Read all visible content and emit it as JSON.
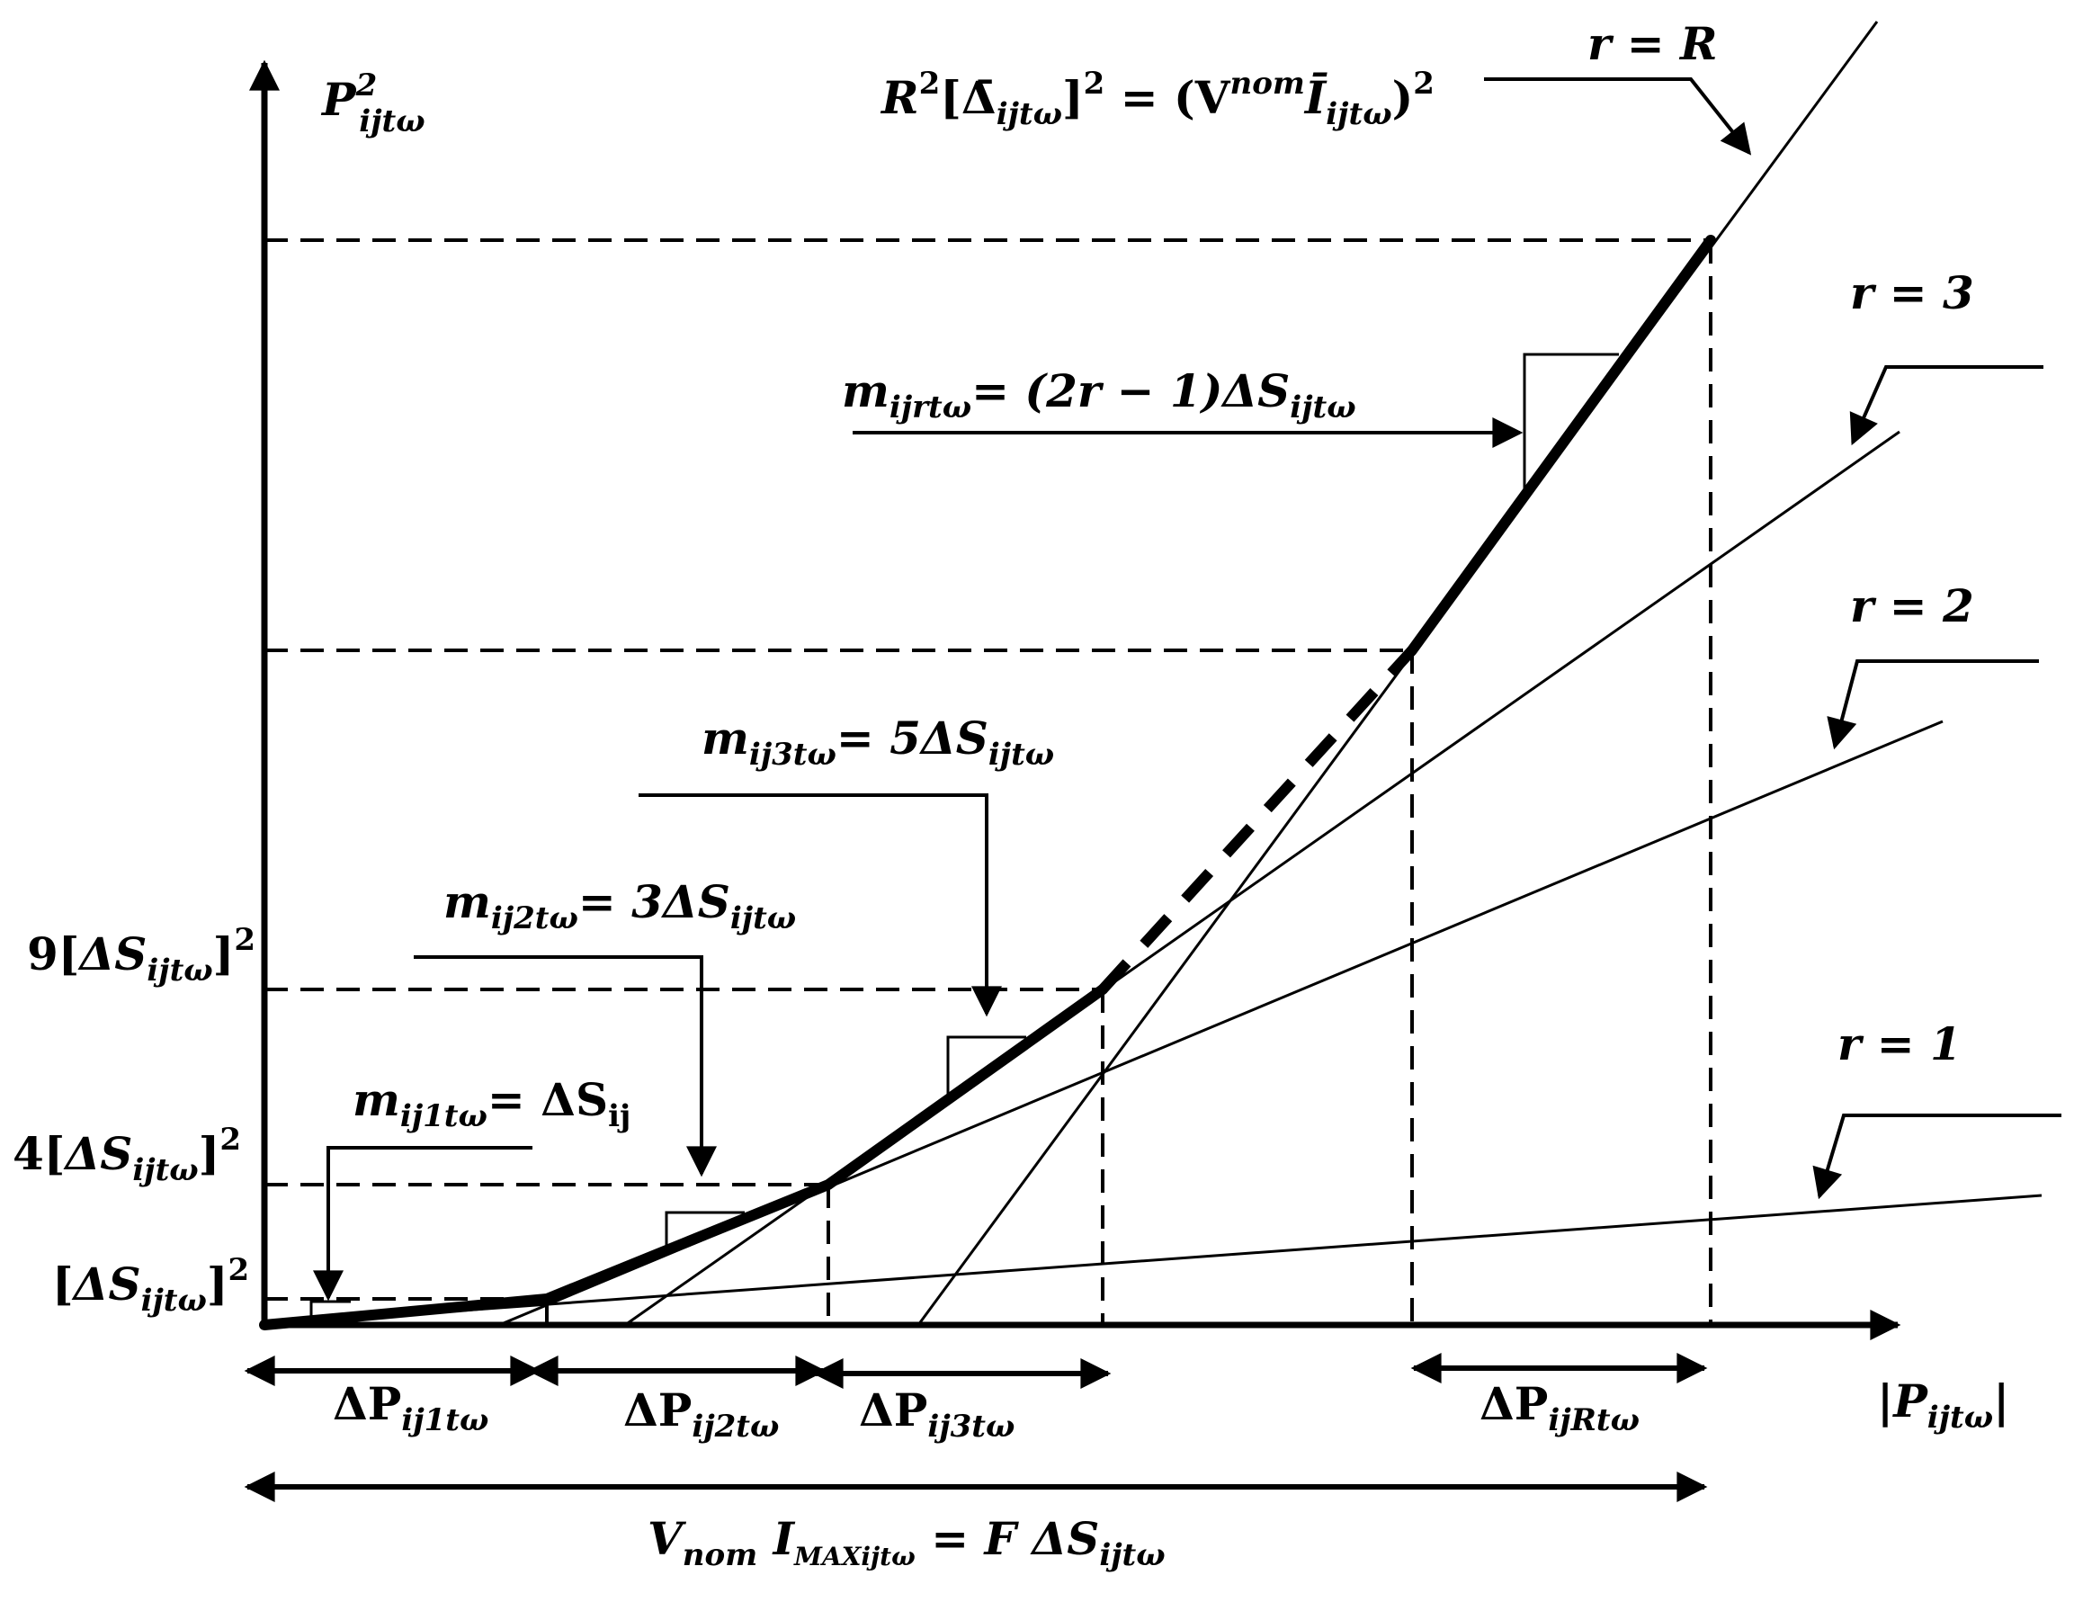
{
  "axes": {
    "y_label_base": "P",
    "y_label_sup": "2",
    "y_label_sub": "ijtω",
    "x_label_base": "|P",
    "x_label_sub": "ijtω",
    "x_label_end": "|"
  },
  "y_ticks": {
    "t1_pre": "[",
    "t1_base": "ΔS",
    "t1_sub": "ijtω",
    "t1_post": "]",
    "t1_sup": "2",
    "t4_pre": "4[",
    "t4_base": "ΔS",
    "t4_sub": "ijtω",
    "t4_post": "]",
    "t4_sup": "2",
    "t9_pre": "9[",
    "t9_base": "ΔS",
    "t9_sub": "ijtω",
    "t9_post": "]",
    "t9_sup": "2"
  },
  "lines": {
    "r1": "r = 1",
    "r2": "r = 2",
    "r3": "r = 3",
    "rR": "r = R"
  },
  "slopes": {
    "m1_base": "m",
    "m1_sub": "ij1tω",
    "m1_rhs": "= ΔS",
    "m1_rhs_sub": "ij",
    "m2_base": "m",
    "m2_sub": "ij2tω",
    "m2_rhs": "= 3ΔS",
    "m2_rhs_sub": "ijtω",
    "m3_base": "m",
    "m3_sub": "ij3tω",
    "m3_rhs": "= 5ΔS",
    "m3_rhs_sub": "ijtω",
    "mr_base": "m",
    "mr_sub": "ijrtω",
    "mr_rhs": "= (2r − 1)ΔS",
    "mr_rhs_sub": "ijtω"
  },
  "top_equation": {
    "a": "R",
    "a_sup": "2",
    "b": "[Δ̄",
    "b_sub": "ijtω",
    "c": "]",
    "c_sup": "2",
    "d": " = (V",
    "d_sup": "nom",
    "e": "Ī",
    "e_sub": "ijtω",
    "f": ")",
    "f_sup": "2"
  },
  "intervals": {
    "p1_base": "ΔP",
    "p1_sub": "ij1tω",
    "p2_base": "ΔP",
    "p2_sub": "ij2tω",
    "p3_base": "ΔP",
    "p3_sub": "ij3tω",
    "pR_base": "ΔP",
    "pR_sub": "ijRtω"
  },
  "bottom_equation": {
    "a": "V",
    "a_sub": "nom",
    "b": " I",
    "b_sub": "MAXijtω",
    "c": " = F ΔS",
    "c_sub": "ijtω"
  }
}
